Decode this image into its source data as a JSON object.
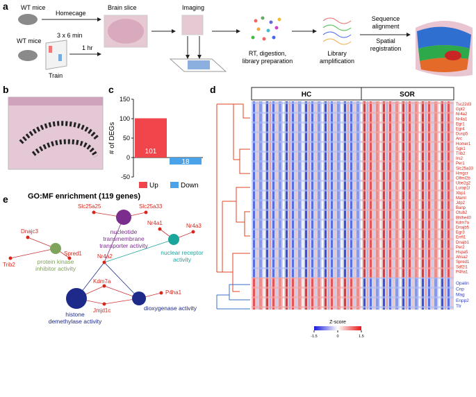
{
  "panel_labels": [
    "a",
    "b",
    "c",
    "d",
    "e"
  ],
  "workflow": {
    "wt_mice_1": "WT mice",
    "wt_mice_2": "WT mice",
    "homecage": "Homecage",
    "sessions": "3 x 6 min",
    "delay": "1 hr",
    "train": "Train",
    "brain_slice": "Brain slice",
    "imaging": "Imaging",
    "rt_step": [
      "RT, digestion,",
      "library preparation"
    ],
    "library_step": [
      "Library",
      "amplification"
    ],
    "sequence_step": [
      "Sequence",
      "alignment"
    ],
    "spatial_step": [
      "Spatial",
      "registration"
    ]
  },
  "chart_data": {
    "type": "bar",
    "ylabel": "# of DEGs",
    "categories": [
      "Up",
      "Down"
    ],
    "values": [
      101,
      -18
    ],
    "value_labels": [
      "101",
      "18"
    ],
    "colors": [
      "#f0454b",
      "#4aa3e8"
    ],
    "ylim": [
      -50,
      150
    ],
    "yticks": [
      -50,
      0,
      50,
      100,
      150
    ],
    "legend": "bottom"
  },
  "heatmap": {
    "groups": [
      "HC",
      "SOR"
    ],
    "up_genes": [
      "Tsc22d3",
      "Gpt2",
      "Nr4a2",
      "Nr4a1",
      "Egr1",
      "Egr4",
      "Dusp5",
      "Arc",
      "Homer1",
      "Sgk1",
      "Trib2",
      "Irs2",
      "Per1",
      "Slc25a33",
      "Hmgcr",
      "Olfml2b",
      "Ube2g2",
      "Lurap1l",
      "Xbp1",
      "Maml",
      "Jdp2",
      "Banp",
      "Otub2",
      "Bhlhe40",
      "Kdm7a",
      "Dnajb5",
      "Egr3",
      "Errfi1",
      "Dnajb1",
      "Per2",
      "Hspa5",
      "Ahsa2",
      "Spred1",
      "Sdf2l1",
      "P4ha1"
    ],
    "down_genes": [
      "Opalin",
      "Cnp",
      "Mag",
      "Enpp2",
      "Ttr"
    ],
    "colorbar": {
      "title": "Z-score",
      "range": [
        -1.5,
        1.5
      ],
      "ticks": [
        -1.5,
        0,
        1.5
      ]
    }
  },
  "network": {
    "title": "GO:MF enrichment (119 genes)",
    "terms": [
      [
        "nucleotide",
        "transmembrane",
        "transporter activity"
      ],
      [
        "nuclear receptor",
        "activity"
      ],
      [
        "protein kinase",
        "inhibitor activity"
      ],
      [
        "histone",
        "demethylase activity"
      ],
      [
        "dioxygenase activity"
      ]
    ],
    "genes": [
      "Dnajc3",
      "Trib2",
      "Spred1",
      "Slc25a25",
      "Slc25a33",
      "Nr4a1",
      "Nr4a3",
      "Nr4a2",
      "Kdm7a",
      "Jmjd1c",
      "P4ha1"
    ]
  }
}
